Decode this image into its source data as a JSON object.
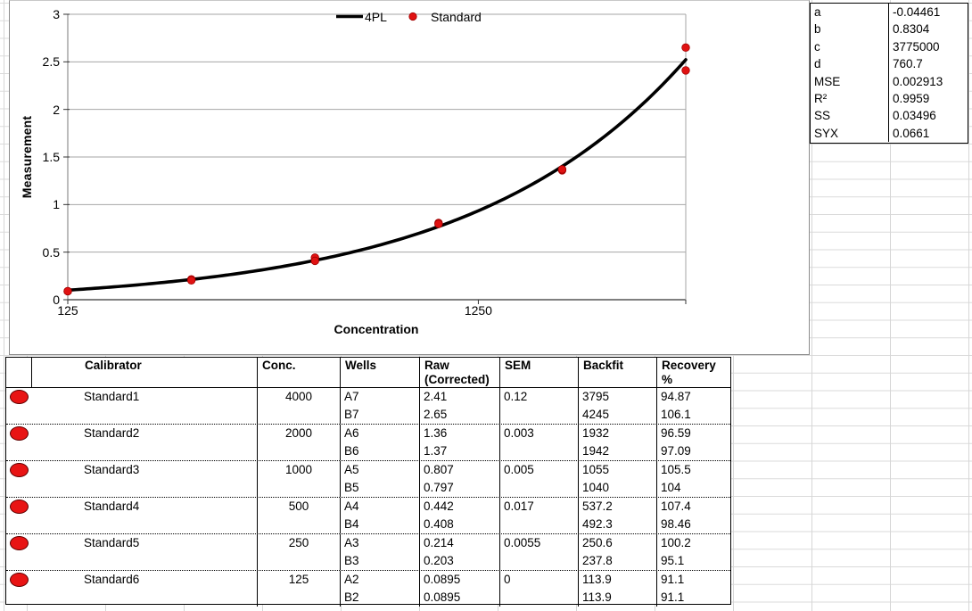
{
  "chart_data": {
    "type": "scatter",
    "xlabel": "Concentration",
    "ylabel": "Measurement",
    "x_scale": "log",
    "x_range": [
      125,
      4000
    ],
    "y_range": [
      0,
      3
    ],
    "x_ticks": [
      125,
      1250
    ],
    "y_ticks": [
      0,
      0.5,
      1,
      1.5,
      2,
      2.5,
      3
    ],
    "grid": "horizontal",
    "legend_position": "top-center",
    "legend": [
      {
        "label": "4PL",
        "marker": "line",
        "color": "#000000"
      },
      {
        "label": "Standard",
        "marker": "dot",
        "color": "#e01212"
      }
    ],
    "series": [
      {
        "name": "Standard",
        "type": "scatter",
        "color": "#e01212",
        "points": [
          [
            125,
            0.0895
          ],
          [
            125,
            0.0895
          ],
          [
            250,
            0.214
          ],
          [
            250,
            0.203
          ],
          [
            500,
            0.442
          ],
          [
            500,
            0.408
          ],
          [
            1000,
            0.807
          ],
          [
            1000,
            0.797
          ],
          [
            2000,
            1.36
          ],
          [
            2000,
            1.37
          ],
          [
            4000,
            2.41
          ],
          [
            4000,
            2.65
          ]
        ]
      },
      {
        "name": "4PL",
        "type": "fit-curve",
        "color": "#000000",
        "model": "y = d + (a - d) / (1 + (x/c)^b)",
        "params": {
          "a": -0.04461,
          "b": 0.8304,
          "c": 3775000,
          "d": 760.7
        }
      }
    ]
  },
  "fit_stats": {
    "rows": [
      {
        "label": "a",
        "value": "-0.04461"
      },
      {
        "label": "b",
        "value": "0.8304"
      },
      {
        "label": "c",
        "value": "3775000"
      },
      {
        "label": "d",
        "value": "760.7"
      },
      {
        "label": "MSE",
        "value": "0.002913"
      },
      {
        "label": "R²",
        "value": "0.9959"
      },
      {
        "label": "SS",
        "value": "0.03496"
      },
      {
        "label": "SYX",
        "value": "0.0661"
      }
    ]
  },
  "results_table": {
    "marker_color": "#e81414",
    "headers": {
      "calibrator": "Calibrator",
      "conc": "Conc.",
      "wells": "Wells",
      "raw": "Raw (Corrected)",
      "sem": "SEM",
      "backfit": "Backfit",
      "recovery": "Recovery %"
    },
    "groups": [
      {
        "calibrator": "Standard1",
        "conc": "4000",
        "sem": "0.12",
        "rows": [
          {
            "well": "A7",
            "raw": "2.41",
            "backfit": "3795",
            "recovery": "94.87"
          },
          {
            "well": "B7",
            "raw": "2.65",
            "backfit": "4245",
            "recovery": "106.1"
          }
        ]
      },
      {
        "calibrator": "Standard2",
        "conc": "2000",
        "sem": "0.003",
        "rows": [
          {
            "well": "A6",
            "raw": "1.36",
            "backfit": "1932",
            "recovery": "96.59"
          },
          {
            "well": "B6",
            "raw": "1.37",
            "backfit": "1942",
            "recovery": "97.09"
          }
        ]
      },
      {
        "calibrator": "Standard3",
        "conc": "1000",
        "sem": "0.005",
        "rows": [
          {
            "well": "A5",
            "raw": "0.807",
            "backfit": "1055",
            "recovery": "105.5"
          },
          {
            "well": "B5",
            "raw": "0.797",
            "backfit": "1040",
            "recovery": "104"
          }
        ]
      },
      {
        "calibrator": "Standard4",
        "conc": "500",
        "sem": "0.017",
        "rows": [
          {
            "well": "A4",
            "raw": "0.442",
            "backfit": "537.2",
            "recovery": "107.4"
          },
          {
            "well": "B4",
            "raw": "0.408",
            "backfit": "492.3",
            "recovery": "98.46"
          }
        ]
      },
      {
        "calibrator": "Standard5",
        "conc": "250",
        "sem": "0.0055",
        "rows": [
          {
            "well": "A3",
            "raw": "0.214",
            "backfit": "250.6",
            "recovery": "100.2"
          },
          {
            "well": "B3",
            "raw": "0.203",
            "backfit": "237.8",
            "recovery": "95.1"
          }
        ]
      },
      {
        "calibrator": "Standard6",
        "conc": "125",
        "sem": "0",
        "rows": [
          {
            "well": "A2",
            "raw": "0.0895",
            "backfit": "113.9",
            "recovery": "91.1"
          },
          {
            "well": "B2",
            "raw": "0.0895",
            "backfit": "113.9",
            "recovery": "91.1"
          }
        ]
      }
    ]
  }
}
